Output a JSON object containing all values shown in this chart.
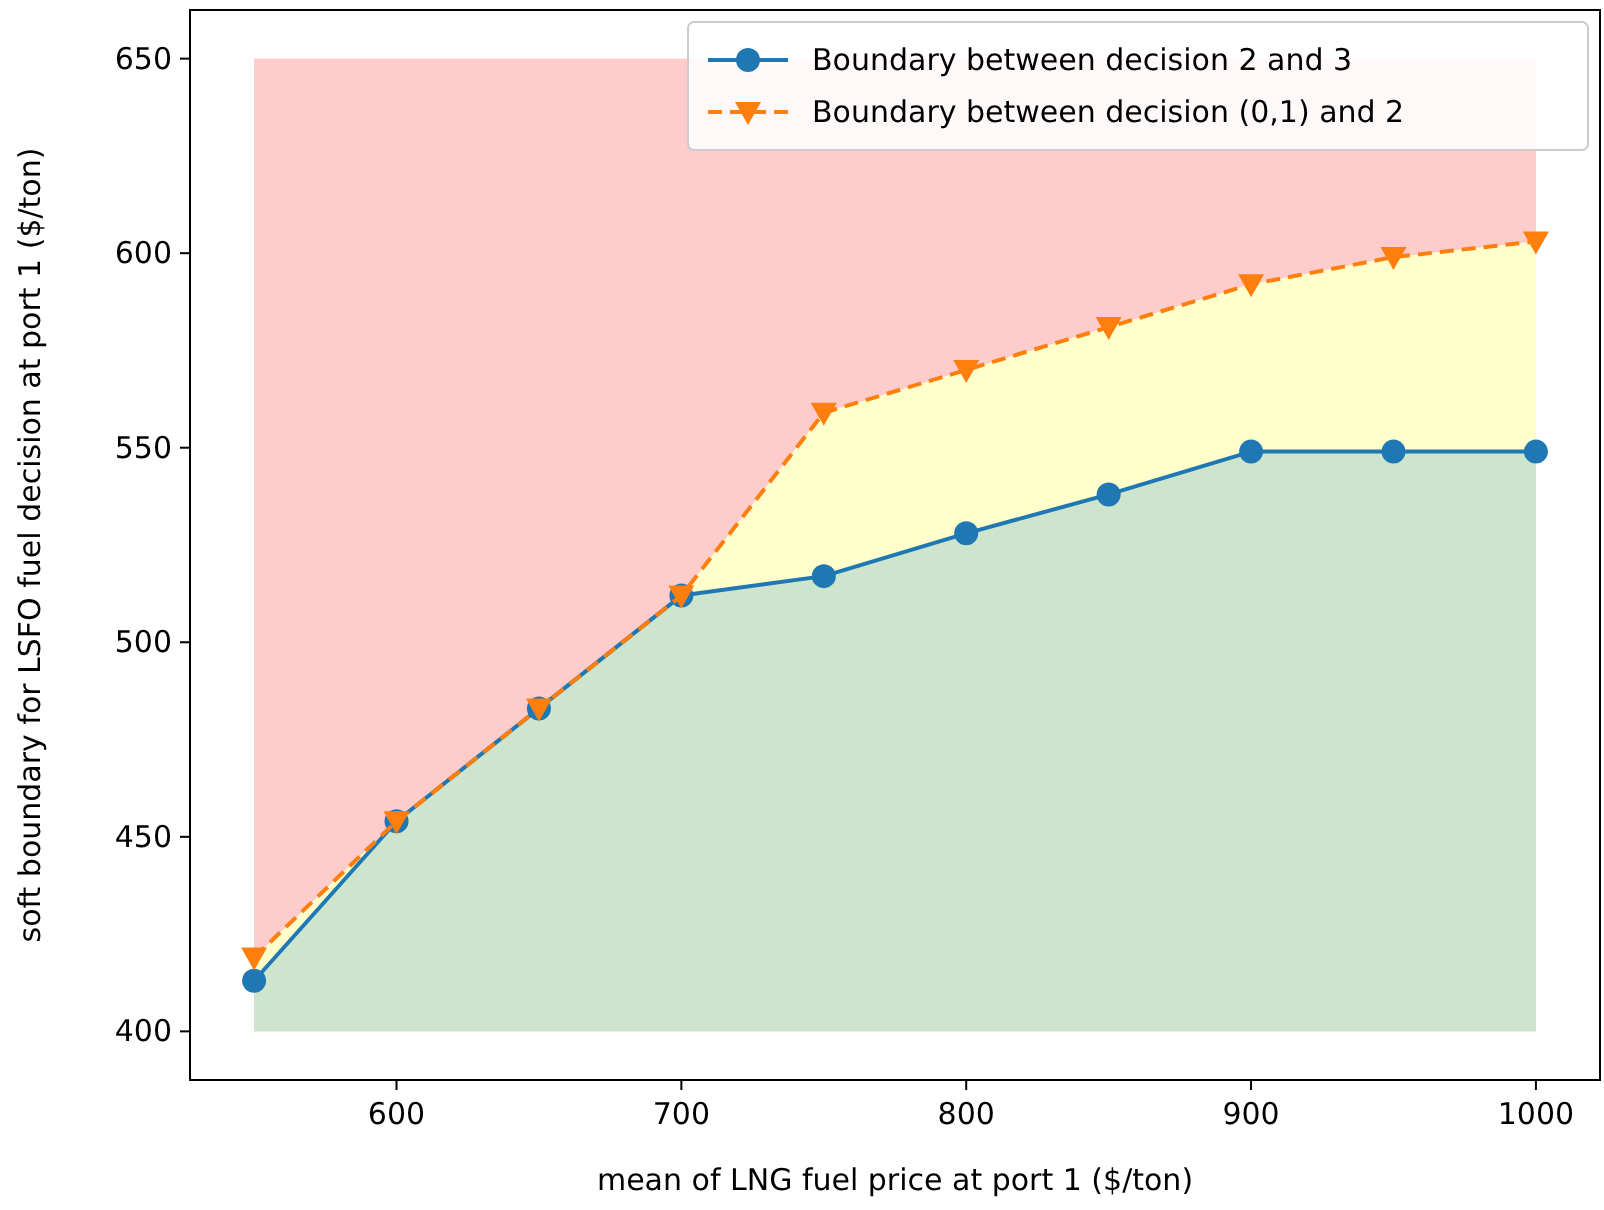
{
  "chart_data": {
    "type": "line",
    "xlabel": "mean of LNG fuel price at port 1 ($/ton)",
    "ylabel": "soft boundary for LSFO fuel decision at port 1 ($/ton)",
    "x": [
      550,
      600,
      650,
      700,
      750,
      800,
      850,
      900,
      950,
      1000
    ],
    "xlim": [
      527.5,
      1022.5
    ],
    "xticks": [
      600,
      700,
      800,
      900,
      1000
    ],
    "ylim": [
      387.5,
      662.5
    ],
    "yticks": [
      400,
      450,
      500,
      550,
      600,
      650
    ],
    "grid": false,
    "legend": "top right",
    "bands": [
      {
        "axis": "y",
        "from": 400,
        "to": 650,
        "color": "#ffcccc"
      }
    ],
    "series": [
      {
        "name": "Boundary between decision 2 and 3",
        "color": "#1f77b4",
        "marker": "circle",
        "line_style": "solid",
        "values": [
          413,
          454,
          483,
          512,
          517,
          528,
          538,
          549,
          549,
          549
        ],
        "lower": [
          400,
          400,
          400,
          400,
          400,
          400,
          400,
          400,
          400,
          400
        ],
        "upper": [
          413,
          454,
          483,
          512,
          517,
          528,
          538,
          549,
          549,
          549
        ]
      },
      {
        "name": "Boundary between decision (0,1) and 2",
        "color": "#ff7f0e",
        "marker": "triangle",
        "line_style": "dashed",
        "values": [
          419,
          454,
          483,
          512,
          559,
          570,
          581,
          592,
          599,
          603
        ],
        "lower": [
          413,
          454,
          483,
          512,
          517,
          528,
          538,
          549,
          549,
          549
        ],
        "upper": [
          419,
          454,
          483,
          512,
          559,
          570,
          581,
          592,
          599,
          603
        ]
      }
    ]
  }
}
